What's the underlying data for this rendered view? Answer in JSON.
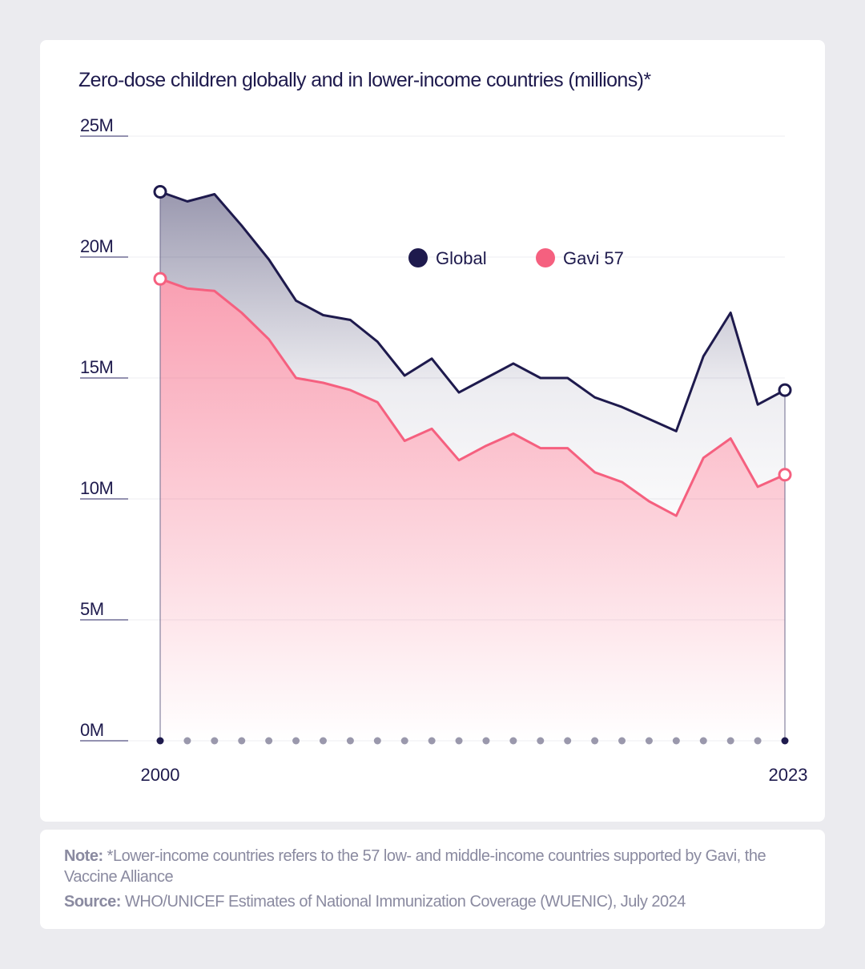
{
  "title": "Zero-dose children globally and in lower-income countries (millions)*",
  "chart_data": {
    "type": "area",
    "title": "Zero-dose children globally and in lower-income countries (millions)*",
    "x": [
      2000,
      2001,
      2002,
      2003,
      2004,
      2005,
      2006,
      2007,
      2008,
      2009,
      2010,
      2011,
      2012,
      2013,
      2014,
      2015,
      2016,
      2017,
      2018,
      2019,
      2020,
      2021,
      2022,
      2023
    ],
    "x_tick_labels": [
      "2000",
      "2023"
    ],
    "y_tick_labels": [
      "0M",
      "5M",
      "10M",
      "15M",
      "20M",
      "25M"
    ],
    "y_ticks": [
      0,
      5,
      10,
      15,
      20,
      25
    ],
    "ylim": [
      0,
      25
    ],
    "series": [
      {
        "name": "Global",
        "color": "#1e1a4d",
        "values": [
          22.7,
          22.3,
          22.6,
          21.3,
          19.9,
          18.2,
          17.6,
          17.4,
          16.5,
          15.1,
          15.8,
          14.4,
          15.0,
          15.6,
          15.0,
          15.0,
          14.2,
          13.8,
          13.3,
          12.8,
          15.9,
          17.7,
          13.9,
          14.5
        ]
      },
      {
        "name": "Gavi 57",
        "color": "#f5607f",
        "values": [
          19.1,
          18.7,
          18.6,
          17.7,
          16.6,
          15.0,
          14.8,
          14.5,
          14.0,
          12.4,
          12.9,
          11.6,
          12.2,
          12.7,
          12.1,
          12.1,
          11.1,
          10.7,
          9.9,
          9.3,
          11.7,
          12.5,
          10.5,
          11.0
        ]
      }
    ]
  },
  "legend": {
    "global_label": "Global",
    "gavi_label": "Gavi 57"
  },
  "note": {
    "note_label": "Note:",
    "note_text": "*Lower-income countries refers to the 57 low- and middle-income countries supported by Gavi, the Vaccine Alliance",
    "source_label": "Source:",
    "source_text": "WHO/UNICEF Estimates of National Immunization Coverage (WUENIC), July 2024"
  },
  "colors": {
    "global": "#1e1a4d",
    "gavi": "#f5607f",
    "axis_dot": "#9a98ac",
    "background": "#ebebef"
  }
}
